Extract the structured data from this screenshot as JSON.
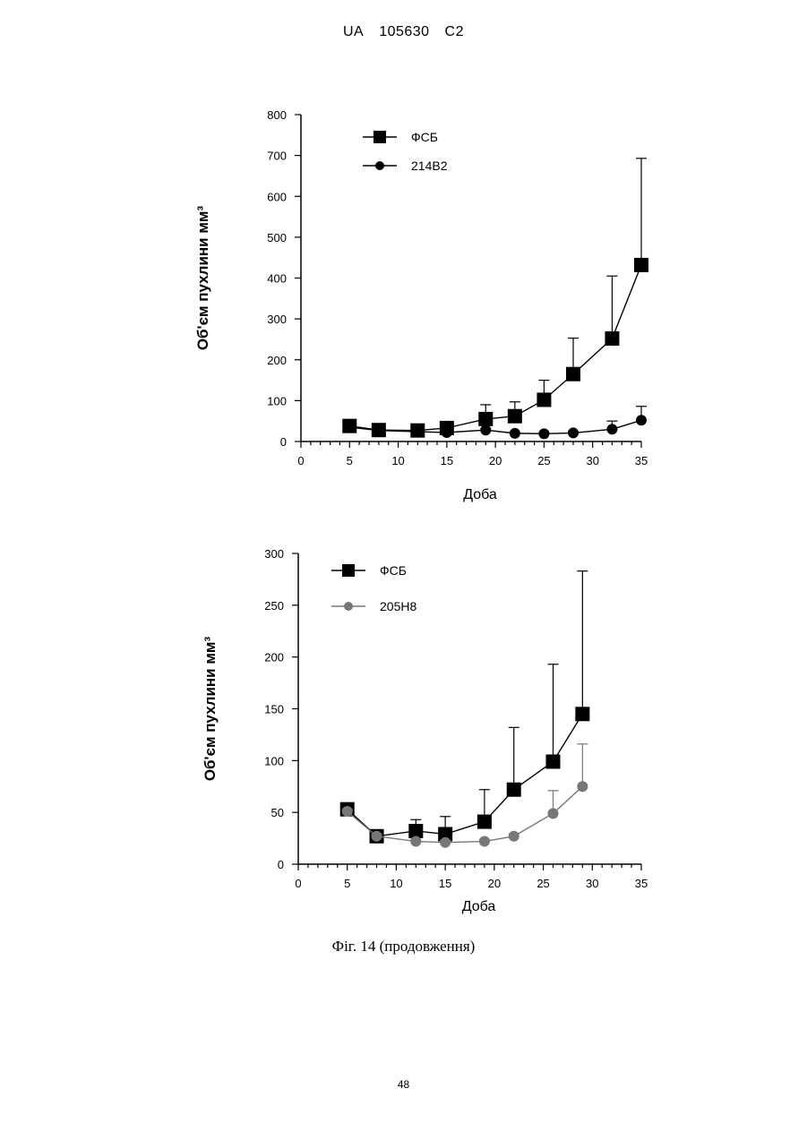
{
  "header": {
    "left": "UA",
    "middle": "105630",
    "right": "C2"
  },
  "caption": "Фіг. 14 (продовження)",
  "page_number": "48",
  "colors": {
    "black": "#000000",
    "gray_series": "#777777"
  },
  "chart_data": [
    {
      "type": "line",
      "xlabel": "Доба",
      "ylabel": "Об'єм пухлини мм³",
      "xlim": [
        0,
        35
      ],
      "ylim": [
        0,
        800
      ],
      "x_ticks": [
        "0",
        "5",
        "10",
        "15",
        "20",
        "25",
        "30",
        "35"
      ],
      "y_ticks": [
        "0",
        "100",
        "200",
        "300",
        "400",
        "500",
        "600",
        "700",
        "800"
      ],
      "legend_position": "top-left",
      "grid": false,
      "series": [
        {
          "name": "ФСБ",
          "marker": "square",
          "color": "#000000",
          "x": [
            5,
            8,
            12,
            15,
            19,
            22,
            25,
            28,
            32,
            35
          ],
          "y": [
            38,
            28,
            27,
            33,
            55,
            62,
            102,
            165,
            252,
            432
          ],
          "error_upper": [
            45,
            32,
            30,
            38,
            90,
            97,
            150,
            253,
            405,
            693
          ]
        },
        {
          "name": "214B2",
          "marker": "circle",
          "color": "#000000",
          "x": [
            5,
            8,
            12,
            15,
            19,
            22,
            25,
            28,
            32,
            35
          ],
          "y": [
            35,
            27,
            24,
            22,
            28,
            20,
            19,
            21,
            30,
            52
          ],
          "error_upper": [
            40,
            30,
            27,
            25,
            32,
            23,
            22,
            24,
            50,
            86
          ]
        }
      ]
    },
    {
      "type": "line",
      "xlabel": "Доба",
      "ylabel": "Об'єм пухлини мм³",
      "xlim": [
        0,
        35
      ],
      "ylim": [
        0,
        300
      ],
      "x_ticks": [
        "0",
        "5",
        "10",
        "15",
        "20",
        "25",
        "30",
        "35"
      ],
      "y_ticks": [
        "0",
        "50",
        "100",
        "150",
        "200",
        "250",
        "300"
      ],
      "legend_position": "top-left",
      "grid": false,
      "series": [
        {
          "name": "ФСБ",
          "marker": "square",
          "color": "#000000",
          "x": [
            5,
            8,
            12,
            15,
            19,
            22,
            26,
            29
          ],
          "y": [
            53,
            27,
            32,
            29,
            41,
            72,
            99,
            145
          ],
          "error_upper": [
            55,
            29,
            43,
            46,
            72,
            132,
            193,
            283
          ]
        },
        {
          "name": "205H8",
          "marker": "circle",
          "color": "#777777",
          "x": [
            5,
            8,
            12,
            15,
            19,
            22,
            26,
            29
          ],
          "y": [
            51,
            27,
            22,
            21,
            22,
            27,
            49,
            75
          ],
          "error_upper": [
            53,
            29,
            24,
            23,
            24,
            29,
            71,
            116
          ]
        }
      ]
    }
  ]
}
